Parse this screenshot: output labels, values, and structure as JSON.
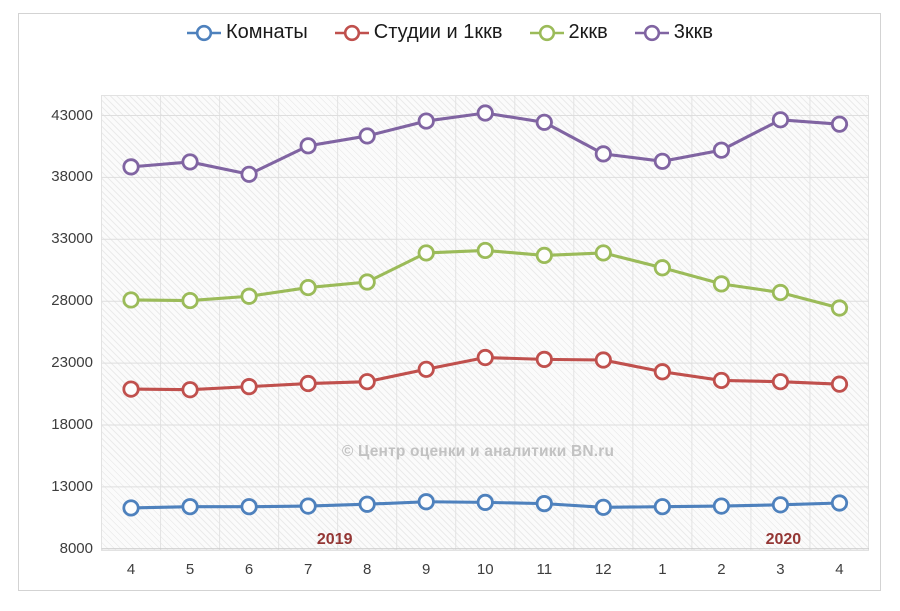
{
  "chart_data": {
    "type": "line",
    "title": "",
    "xlabel": "",
    "ylabel": "",
    "categories": [
      "4",
      "5",
      "6",
      "7",
      "8",
      "9",
      "10",
      "11",
      "12",
      "1",
      "2",
      "3",
      "4"
    ],
    "series": [
      {
        "name": "Комнаты",
        "color": "#4E81BD",
        "values": [
          11300,
          11400,
          11400,
          11450,
          11600,
          11800,
          11750,
          11650,
          11350,
          11400,
          11450,
          11550,
          11700
        ]
      },
      {
        "name": "Студии и 1ккв",
        "color": "#C0504D",
        "values": [
          20900,
          20850,
          21100,
          21350,
          21500,
          22500,
          23450,
          23300,
          23250,
          22300,
          21600,
          21500,
          21300
        ]
      },
      {
        "name": "2ккв",
        "color": "#9BBB59",
        "values": [
          28100,
          28050,
          28400,
          29100,
          29550,
          31900,
          32100,
          31700,
          31900,
          30700,
          29400,
          28700,
          27450
        ]
      },
      {
        "name": "3ккв",
        "color": "#8064A2",
        "values": [
          38850,
          39250,
          38250,
          40550,
          41350,
          42550,
          43200,
          42450,
          39900,
          39300,
          40200,
          42650,
          42300
        ]
      }
    ],
    "yticks": [
      8000,
      13000,
      18000,
      23000,
      28000,
      33000,
      38000,
      43000
    ],
    "ylim": [
      8000,
      44650
    ],
    "grid": true,
    "legend_position": "top",
    "marker": "open-circle",
    "annotations": [
      {
        "text": "2019",
        "x_index": 3.45,
        "color": "#943634"
      },
      {
        "text": "2020",
        "x_index": 11.05,
        "color": "#943634"
      }
    ],
    "watermark": "© Центр оценки и аналитики BN.ru"
  }
}
